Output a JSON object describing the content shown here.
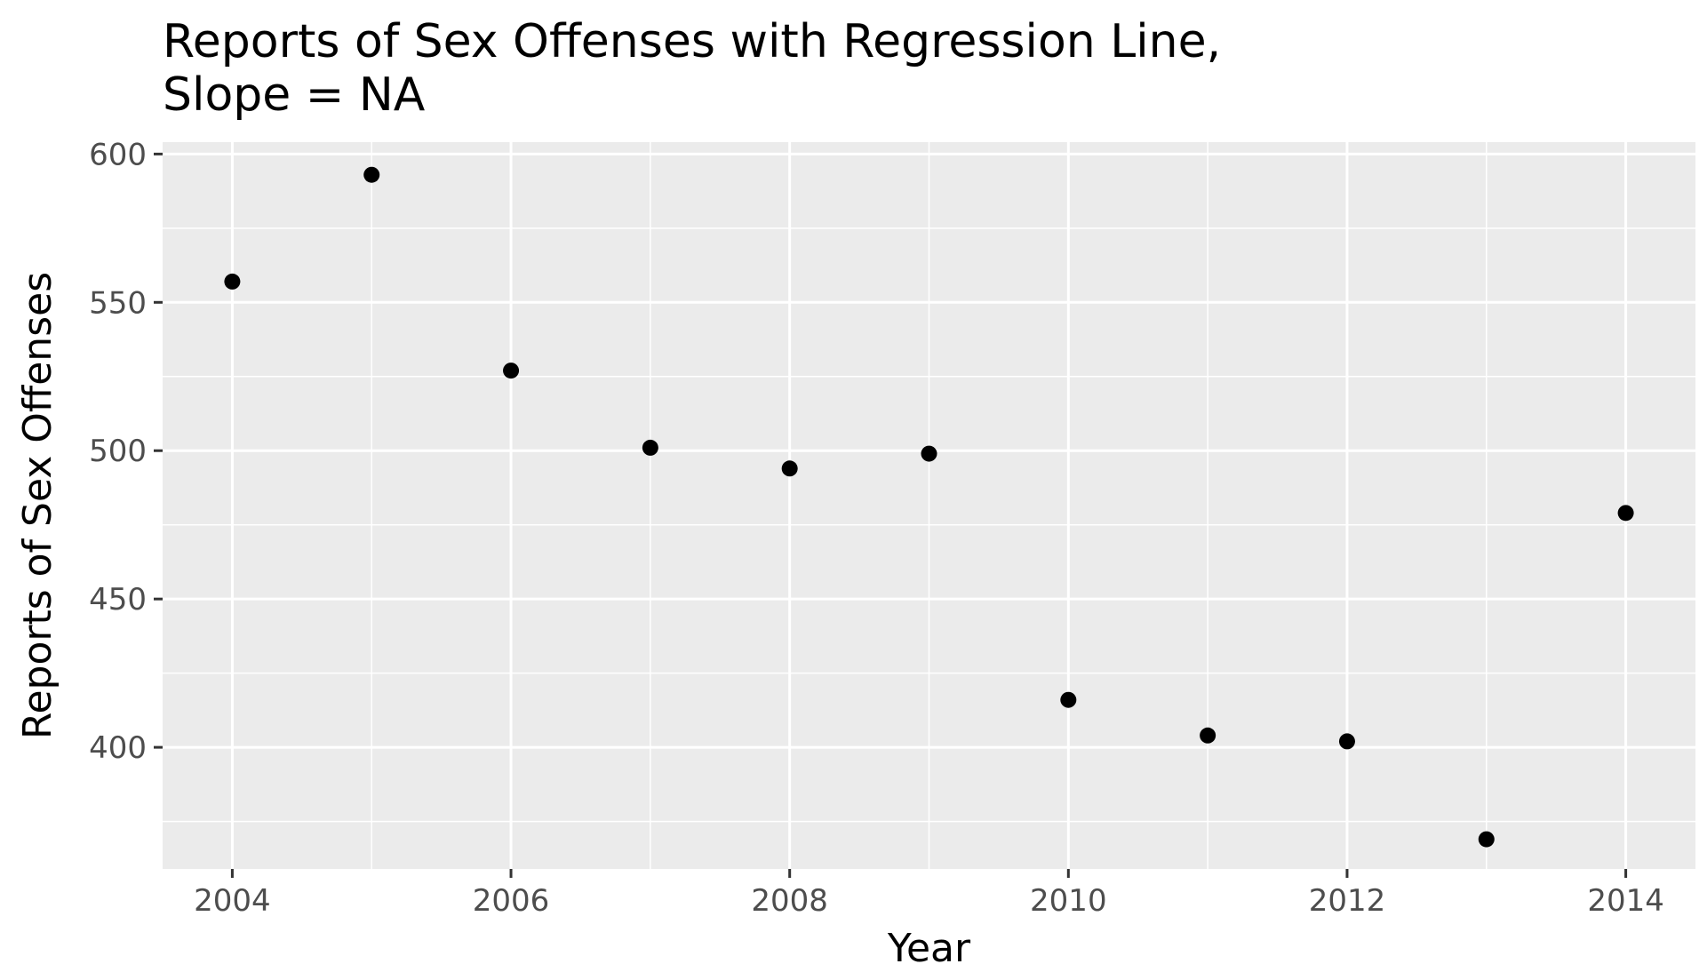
{
  "chart_data": {
    "type": "scatter",
    "title_lines": [
      "Reports of Sex Offenses with Regression Line,",
      "Slope = NA"
    ],
    "xlabel": "Year",
    "ylabel": "Reports of Sex Offenses",
    "x": [
      2004,
      2005,
      2006,
      2007,
      2008,
      2009,
      2010,
      2011,
      2012,
      2013,
      2014
    ],
    "y": [
      557,
      593,
      527,
      501,
      494,
      499,
      416,
      404,
      402,
      369,
      479
    ],
    "xlim": [
      2003.5,
      2014.5
    ],
    "ylim": [
      359,
      604
    ],
    "x_ticks": [
      2004,
      2006,
      2008,
      2010,
      2012,
      2014
    ],
    "x_minor": [
      2005,
      2007,
      2009,
      2011,
      2013
    ],
    "y_ticks": [
      400,
      450,
      500,
      550,
      600
    ],
    "y_minor": [
      375,
      425,
      475,
      525,
      575
    ],
    "grid": true,
    "panel_color": "#ebebeb",
    "grid_color": "#ffffff",
    "point_color": "#000000"
  }
}
